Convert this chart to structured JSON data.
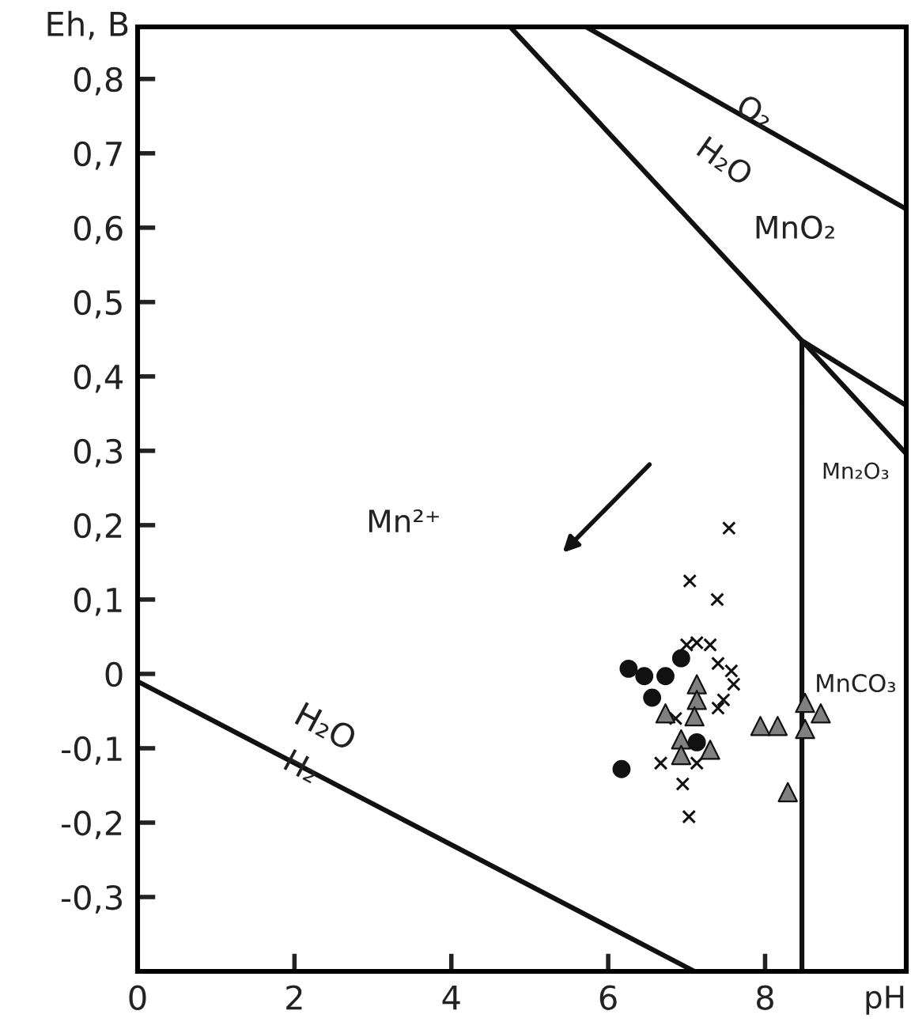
{
  "chart_data": {
    "type": "scatter",
    "xlabel": "pH",
    "ylabel": "Eh, B",
    "xlim": [
      0,
      9.8
    ],
    "ylim": [
      -0.4,
      0.87
    ],
    "xticks": [
      0,
      2,
      4,
      6,
      8
    ],
    "yticks": [
      {
        "value": -0.3,
        "label": "-0,3"
      },
      {
        "value": -0.2,
        "label": "-0,2"
      },
      {
        "value": -0.1,
        "label": "-0,1"
      },
      0,
      {
        "value": 0.1,
        "label": "0,1"
      },
      {
        "value": 0.2,
        "label": "0,2"
      },
      {
        "value": 0.3,
        "label": "0,3"
      },
      {
        "value": 0.4,
        "label": "0,4"
      },
      {
        "value": 0.5,
        "label": "0,5"
      },
      {
        "value": 0.6,
        "label": "0,6"
      },
      {
        "value": 0.7,
        "label": "0,7"
      },
      {
        "value": 0.8,
        "label": "0,8"
      }
    ],
    "series": [
      {
        "type": "line",
        "color": "#111111",
        "line_style": "solid",
        "x": [
          0,
          7.1
        ],
        "values": [
          -0.01,
          -0.4
        ]
      },
      {
        "type": "line",
        "color": "#111111",
        "line_style": "solid",
        "x": [
          5.72,
          9.8
        ],
        "values": [
          0.87,
          0.625
        ]
      },
      {
        "type": "line",
        "color": "#111111",
        "line_style": "solid",
        "x": [
          4.75,
          8.47,
          9.8
        ],
        "values": [
          0.87,
          0.448,
          0.361
        ]
      },
      {
        "type": "line",
        "color": "#111111",
        "line_style": "solid",
        "x": [
          9.8,
          8.47,
          8.47
        ],
        "values": [
          0.296,
          0.448,
          -0.4
        ]
      },
      {
        "color": "#111111",
        "marker": "cross",
        "x": [
          7.54,
          7.04,
          7.39,
          7.0,
          7.3,
          7.13,
          7.4,
          7.57,
          7.6,
          7.47,
          7.4,
          6.67,
          7.13,
          6.95,
          7.03,
          6.86
        ],
        "values": [
          0.196,
          0.125,
          0.1,
          0.039,
          0.039,
          0.042,
          0.014,
          0.004,
          -0.014,
          -0.035,
          -0.046,
          -0.12,
          -0.12,
          -0.148,
          -0.192,
          -0.06
        ]
      },
      {
        "color": "#111111",
        "marker": "circle",
        "x": [
          6.26,
          6.46,
          6.56,
          6.93,
          6.17,
          7.13,
          6.73
        ],
        "values": [
          0.007,
          -0.003,
          -0.032,
          0.021,
          -0.128,
          -0.092,
          -0.003
        ]
      },
      {
        "color": "#808080",
        "marker": "triangle",
        "x": [
          7.13,
          7.13,
          6.73,
          6.93,
          6.93,
          7.3,
          7.94,
          8.16,
          8.51,
          8.71,
          8.51,
          8.29,
          7.1
        ],
        "values": [
          -0.014,
          -0.035,
          -0.053,
          -0.088,
          -0.109,
          -0.102,
          -0.07,
          -0.07,
          -0.039,
          -0.053,
          -0.074,
          -0.159,
          -0.057
        ]
      }
    ],
    "annotations": [
      "O₂",
      "H₂O",
      "MnO₂",
      "Mn₂O₃",
      "Mn²⁺",
      "MnCO₃",
      "H₂O",
      "H₂"
    ]
  }
}
